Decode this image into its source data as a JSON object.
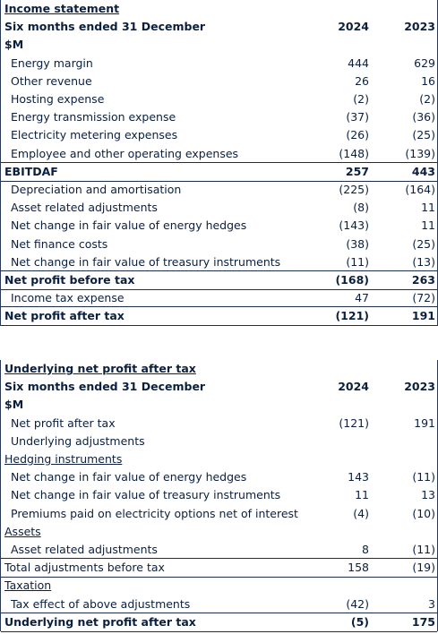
{
  "tables": [
    {
      "title": "Income statement",
      "header": [
        "Six months ended 31 December",
        "2024",
        "2023"
      ],
      "unit": "$M",
      "rows": [
        [
          "Energy margin",
          "444",
          "629"
        ],
        [
          "Other revenue",
          "26",
          "16"
        ],
        [
          "Hosting expense",
          "(2)",
          "(2)"
        ],
        [
          "Energy transmission expense",
          "(37)",
          "(36)"
        ],
        [
          "Electricity metering expenses",
          "(26)",
          "(25)"
        ],
        [
          "Employee and other operating expenses",
          "(148)",
          "(139)"
        ],
        [
          "EBITDAF",
          "257",
          "443"
        ],
        [
          "Depreciation and amortisation",
          "(225)",
          "(164)"
        ],
        [
          "Asset related adjustments",
          "(8)",
          "11"
        ],
        [
          "Net change in fair value of energy hedges",
          "(143)",
          "11"
        ],
        [
          "Net finance costs",
          "(38)",
          "(25)"
        ],
        [
          "Net change in fair value of treasury instruments",
          "(11)",
          "(13)"
        ],
        [
          "Net profit before tax",
          "(168)",
          "263"
        ],
        [
          "Income tax expense",
          "47",
          "(72)"
        ],
        [
          "Net profit after tax",
          "(121)",
          "191"
        ]
      ]
    },
    {
      "title": "Underlying net profit after tax",
      "header": [
        "Six months ended 31 December",
        "2024",
        "2023"
      ],
      "unit": "$M",
      "rows": [
        [
          "Net profit after tax",
          "(121)",
          "191"
        ],
        [
          "Underlying adjustments"
        ],
        [
          "Hedging instruments"
        ],
        [
          "Net change in fair value of energy hedges",
          "143",
          "(11)"
        ],
        [
          "Net change in fair value of treasury instruments",
          "11",
          "13"
        ],
        [
          "Premiums paid on electricity options net of interest",
          "(4)",
          "(10)"
        ],
        [
          "Assets"
        ],
        [
          "Asset related adjustments",
          "8",
          "(11)"
        ],
        [
          "Total adjustments before tax",
          "158",
          "(19)"
        ],
        [
          "Taxation"
        ],
        [
          "Tax effect of above adjustments",
          "(42)",
          "3"
        ],
        [
          "Underlying net profit after tax",
          "(5)",
          "175"
        ]
      ]
    }
  ]
}
